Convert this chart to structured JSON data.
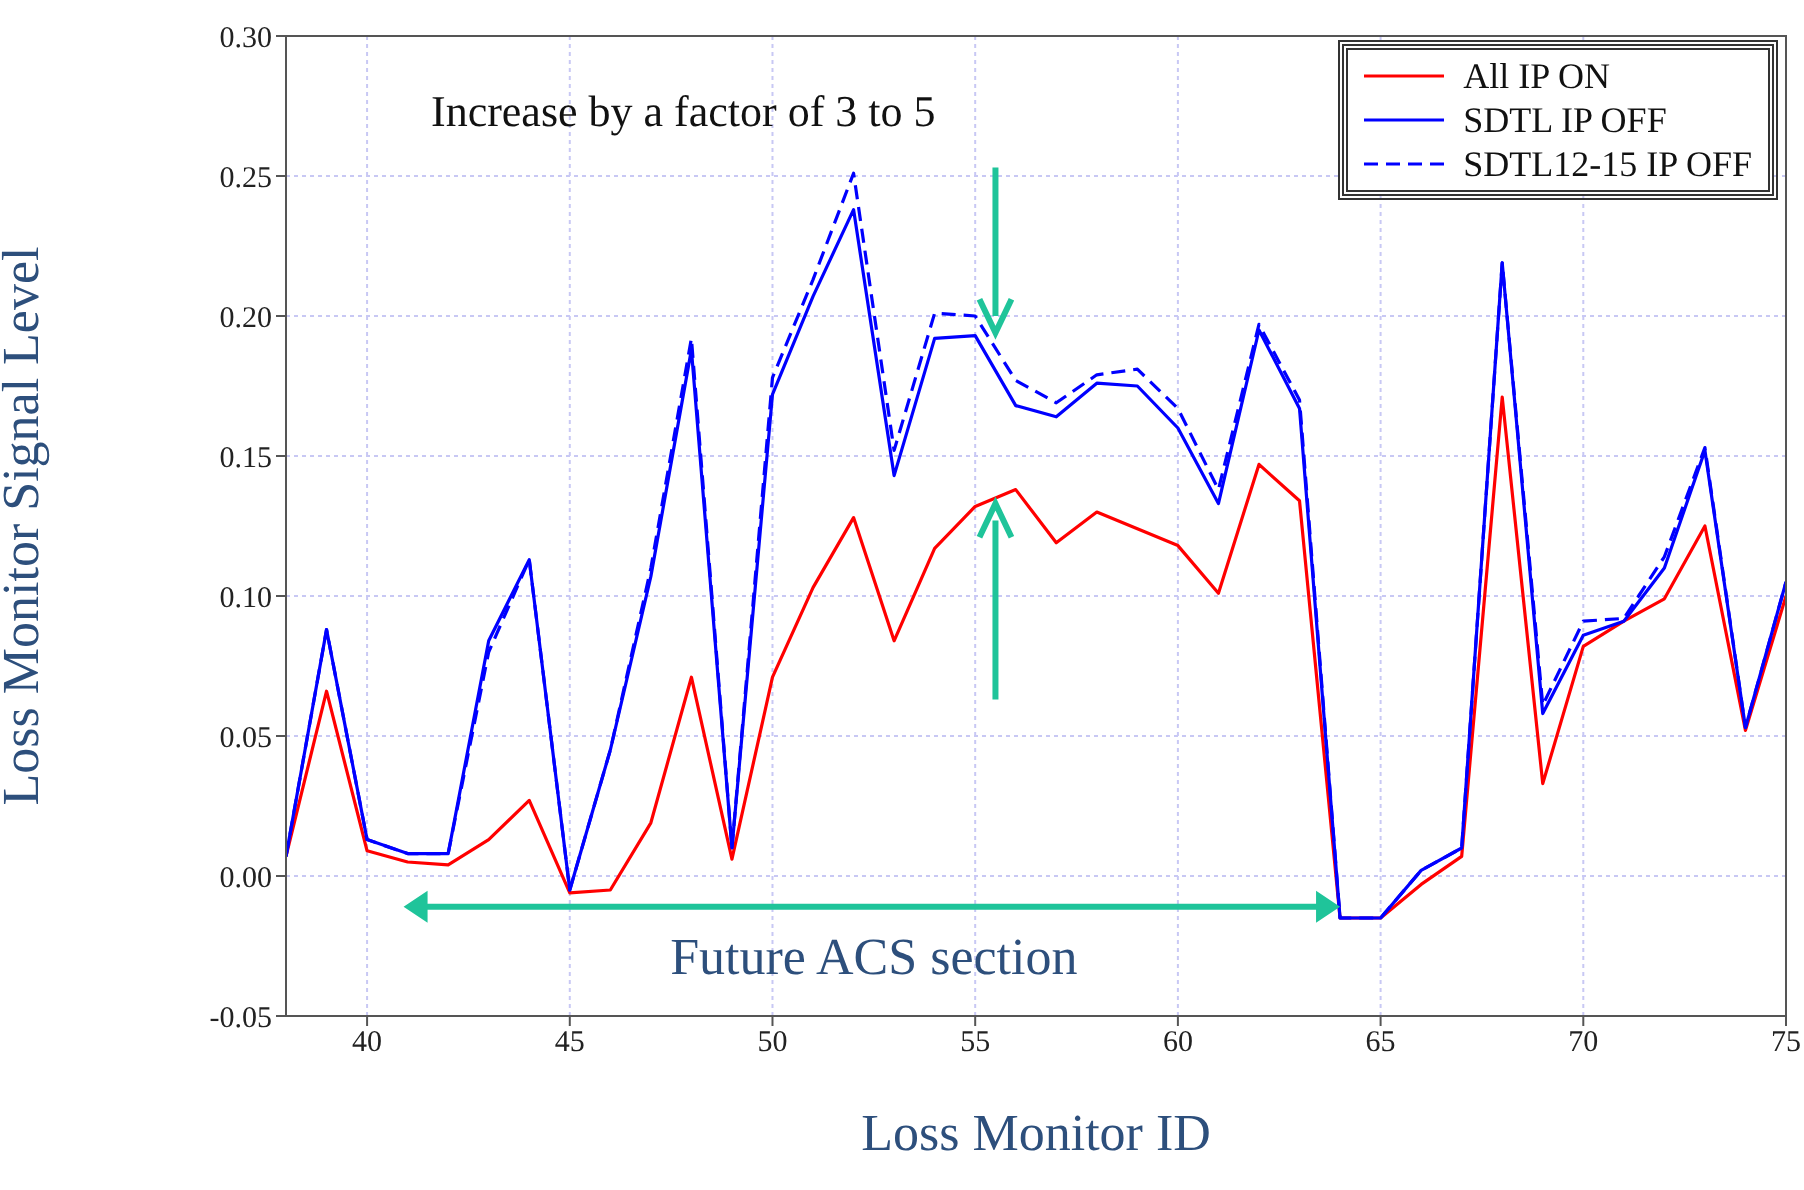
{
  "chart_data": {
    "type": "line",
    "xlabel": "Loss Monitor ID",
    "ylabel": "Loss Monitor Signal Level",
    "x": [
      38,
      39,
      40,
      41,
      42,
      43,
      44,
      45,
      46,
      47,
      48,
      49,
      50,
      51,
      52,
      53,
      54,
      55,
      56,
      57,
      58,
      59,
      60,
      61,
      62,
      63,
      64,
      65,
      66,
      67,
      68,
      69,
      70,
      71,
      72,
      73,
      74,
      75
    ],
    "series": [
      {
        "name": "All IP ON",
        "color": "#ff0000",
        "line_style": "solid",
        "values": [
          0.007,
          0.066,
          0.009,
          0.005,
          0.004,
          0.013,
          0.027,
          -0.006,
          -0.005,
          0.019,
          0.071,
          0.006,
          0.071,
          0.103,
          0.128,
          0.084,
          0.117,
          0.132,
          0.138,
          0.119,
          0.13,
          0.124,
          0.118,
          0.101,
          0.147,
          0.134,
          -0.015,
          -0.015,
          -0.003,
          0.007,
          0.171,
          0.033,
          0.082,
          0.091,
          0.099,
          0.125,
          0.052,
          0.1
        ]
      },
      {
        "name": "SDTL IP OFF",
        "color": "#0000ff",
        "line_style": "solid",
        "values": [
          0.007,
          0.088,
          0.013,
          0.008,
          0.008,
          0.084,
          0.113,
          -0.005,
          0.045,
          0.107,
          0.188,
          0.01,
          0.172,
          0.207,
          0.238,
          0.143,
          0.192,
          0.193,
          0.168,
          0.164,
          0.176,
          0.175,
          0.16,
          0.133,
          0.195,
          0.167,
          -0.015,
          -0.015,
          0.002,
          0.01,
          0.219,
          0.058,
          0.086,
          0.091,
          0.11,
          0.152,
          0.053,
          0.105
        ]
      },
      {
        "name": "SDTL12-15 IP OFF",
        "color": "#0000ff",
        "line_style": "dashed",
        "values": [
          0.007,
          0.088,
          0.013,
          0.008,
          0.008,
          0.08,
          0.113,
          -0.005,
          0.045,
          0.11,
          0.192,
          0.01,
          0.178,
          0.213,
          0.251,
          0.152,
          0.201,
          0.2,
          0.177,
          0.169,
          0.179,
          0.181,
          0.167,
          0.138,
          0.197,
          0.17,
          -0.015,
          -0.015,
          0.002,
          0.01,
          0.219,
          0.061,
          0.091,
          0.092,
          0.114,
          0.153,
          0.053,
          0.105
        ]
      }
    ],
    "xlim": [
      38,
      75
    ],
    "xticks": [
      40,
      45,
      50,
      55,
      60,
      65,
      70,
      75
    ],
    "ylim": [
      -0.05,
      0.3
    ],
    "yticks": [
      {
        "value": -0.05,
        "label": "-0.05"
      },
      {
        "value": 0,
        "label": "0.00"
      },
      {
        "value": 0.05,
        "label": "0.05"
      },
      {
        "value": 0.1,
        "label": "0.10"
      },
      {
        "value": 0.15,
        "label": "0.15"
      },
      {
        "value": 0.2,
        "label": "0.20"
      },
      {
        "value": 0.25,
        "label": "0.25"
      },
      {
        "value": 0.3,
        "label": "0.30"
      }
    ],
    "annotations": [
      "Increase by a factor of 3 to 5",
      "Future ACS section"
    ],
    "grid": true,
    "legend": "top right",
    "marker": "none"
  }
}
